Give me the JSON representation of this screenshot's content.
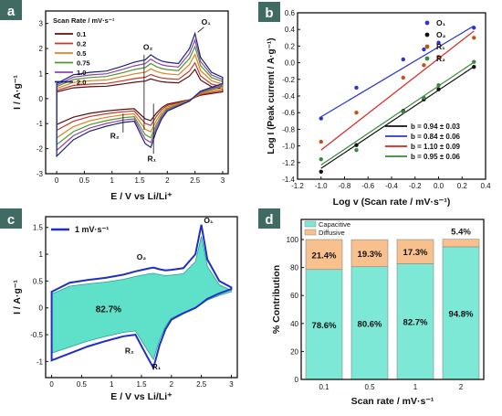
{
  "chart_data": [
    {
      "panel": "a",
      "type": "line",
      "xlabel": "E / V vs Li/Li⁺",
      "ylabel": "I / A·g⁻¹",
      "xlim": [
        -0.2,
        3.1
      ],
      "ylim": [
        -3,
        3.5
      ],
      "xticks": [
        "0",
        "0.5",
        "1",
        "1.5",
        "2",
        "2.5",
        "3"
      ],
      "yticks": [
        "-3",
        "-2",
        "-1",
        "0",
        "1",
        "2",
        "3"
      ],
      "legend_title": "Scan Rate / mV·s⁻¹",
      "legend_position": "top-left",
      "series": [
        {
          "name": "0.1",
          "color": "#5a1010",
          "scale": 0.45
        },
        {
          "name": "0.2",
          "color": "#c0392b",
          "scale": 0.55
        },
        {
          "name": "0.5",
          "color": "#e08020",
          "scale": 0.68
        },
        {
          "name": "0.75",
          "color": "#4c9a2a",
          "scale": 0.8
        },
        {
          "name": "1.0",
          "color": "#8e44ad",
          "scale": 0.9
        },
        {
          "name": "2.0",
          "color": "#1a237e",
          "scale": 1.0
        }
      ],
      "annotations": [
        "O₁",
        "O₂",
        "R₁",
        "R₂"
      ],
      "x_samples": [
        0.0,
        0.3,
        0.6,
        0.9,
        1.2,
        1.4,
        1.6,
        1.7,
        1.8,
        1.9,
        2.0,
        2.2,
        2.4,
        2.5,
        2.6,
        2.8,
        3.0
      ],
      "anodic_2mV": [
        0.6,
        0.95,
        1.05,
        1.1,
        1.3,
        1.45,
        1.55,
        1.75,
        1.6,
        1.5,
        1.45,
        1.4,
        2.0,
        2.6,
        1.65,
        1.05,
        0.85
      ],
      "cathodic_2mV": [
        -2.3,
        -1.65,
        -1.3,
        -1.1,
        -0.95,
        -0.9,
        -1.8,
        -1.95,
        -1.3,
        -0.8,
        -0.5,
        -0.3,
        -0.1,
        0.1,
        0.3,
        0.45,
        0.6
      ]
    },
    {
      "panel": "b",
      "type": "scatter",
      "xlabel": "Log v (Scan rate / mV·s⁻¹)",
      "ylabel": "Log I (Peak current / A·g⁻¹)",
      "xlim": [
        -1.2,
        0.4
      ],
      "ylim": [
        -1.4,
        0.6
      ],
      "xticks": [
        "-1.2",
        "-1.0",
        "-0.8",
        "-0.6",
        "-0.4",
        "-0.2",
        "0.0",
        "0.2",
        "0.4"
      ],
      "yticks": [
        "-1.4",
        "-1.2",
        "-1.0",
        "-0.8",
        "-0.6",
        "-0.4",
        "-0.2",
        "0.0",
        "0.2",
        "0.4",
        "0.6"
      ],
      "x": [
        -1.0,
        -0.699,
        -0.301,
        -0.125,
        0.0,
        0.301
      ],
      "legend_position": "top-right",
      "series": [
        {
          "name": "O₁",
          "color": "#2b34d4",
          "values": [
            -0.67,
            -0.3,
            0.04,
            0.16,
            0.24,
            0.42
          ]
        },
        {
          "name": "O₂",
          "color": "#111111",
          "values": [
            -1.31,
            -0.99,
            -0.58,
            -0.44,
            -0.32,
            -0.05
          ]
        },
        {
          "name": "R₁",
          "color": "#c0521b",
          "values": [
            -0.95,
            -0.6,
            -0.18,
            -0.03,
            0.07,
            0.3
          ]
        },
        {
          "name": "R₂",
          "color": "#3a8a3a",
          "values": [
            -1.16,
            -1.05,
            -0.59,
            -0.42,
            -0.27,
            0.01
          ]
        }
      ],
      "fit_lines": [
        {
          "label": "b = 0.94 ± 0.03",
          "color": "#111111",
          "slope": 0.94,
          "intercept": -0.33
        },
        {
          "label": "b = 0.84 ± 0.06",
          "color": "#2b34d4",
          "slope": 0.84,
          "intercept": 0.19
        },
        {
          "label": "b = 1.10 ± 0.09",
          "color": "#d8231e",
          "slope": 1.1,
          "intercept": 0.05
        },
        {
          "label": "b = 0.95 ± 0.06",
          "color": "#3a8a3a",
          "slope": 0.95,
          "intercept": -0.28
        }
      ]
    },
    {
      "panel": "c",
      "type": "area",
      "xlabel": "E / V vs Li/Li⁺",
      "ylabel": "I / A·g⁻¹",
      "xlim": [
        -0.1,
        3.1
      ],
      "ylim": [
        -1.3,
        1.7
      ],
      "xticks": [
        "0",
        "0.5",
        "1",
        "1.5",
        "2",
        "2.5",
        "3"
      ],
      "yticks": [
        "-1",
        "-0.5",
        "0",
        "0.5",
        "1",
        "1.5"
      ],
      "legend": "1 mV·s⁻¹",
      "fill_label": "82.7%",
      "annotations": [
        "O₁",
        "O₂",
        "R₁",
        "R₂"
      ],
      "x_samples": [
        0.0,
        0.3,
        0.6,
        0.9,
        1.2,
        1.4,
        1.6,
        1.7,
        1.8,
        1.9,
        2.0,
        2.2,
        2.4,
        2.5,
        2.6,
        2.8,
        3.0
      ],
      "anodic": [
        0.3,
        0.47,
        0.52,
        0.56,
        0.62,
        0.68,
        0.73,
        0.75,
        0.72,
        0.7,
        0.71,
        0.74,
        1.0,
        1.55,
        0.9,
        0.5,
        0.38
      ],
      "cathodic": [
        -0.98,
        -0.85,
        -0.72,
        -0.62,
        -0.53,
        -0.5,
        -0.92,
        -1.12,
        -0.7,
        -0.4,
        -0.22,
        -0.1,
        0.0,
        0.08,
        0.17,
        0.27,
        0.35
      ]
    },
    {
      "panel": "d",
      "type": "bar",
      "xlabel": "Scan rate / mV·s⁻¹",
      "ylabel": "% Contribution",
      "categories": [
        "0.1",
        "0.5",
        "1",
        "2"
      ],
      "ylim": [
        0,
        100
      ],
      "yticks": [
        "0",
        "20",
        "40",
        "60",
        "80",
        "100"
      ],
      "legend_position": "top-left",
      "series": [
        {
          "name": "Capacitive",
          "color": "#7de8d6",
          "values": [
            78.6,
            80.6,
            82.7,
            94.8
          ],
          "labels": [
            "78.6%",
            "80.6%",
            "82.7%",
            "94.8%"
          ]
        },
        {
          "name": "Diffusive",
          "color": "#f7c08c",
          "values": [
            21.4,
            19.3,
            17.3,
            5.4
          ],
          "labels": [
            "21.4%",
            "19.3%",
            "17.3%",
            "5.4%"
          ]
        }
      ]
    }
  ]
}
